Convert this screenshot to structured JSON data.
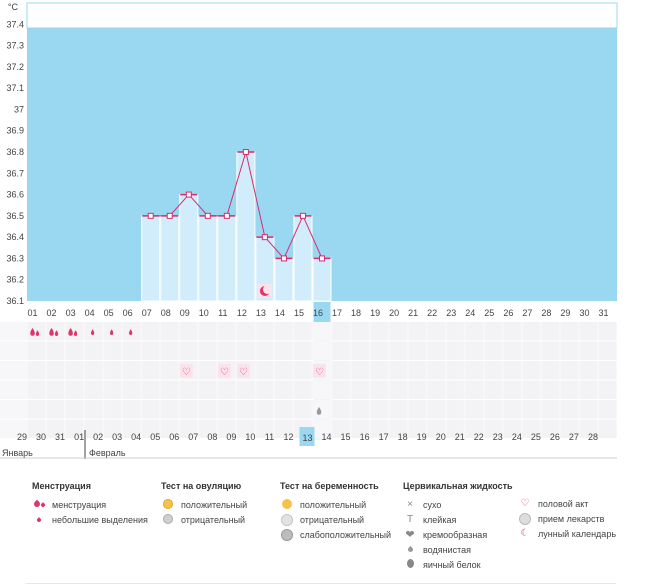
{
  "chart_data": {
    "type": "bar",
    "y_unit": "°C",
    "ylim": [
      36.1,
      37.5
    ],
    "y_ticks": [
      "37.4",
      "37.3",
      "37.2",
      "37.1",
      "37",
      "36.9",
      "36.8",
      "36.7",
      "36.6",
      "36.5",
      "36.4",
      "36.3",
      "36.2",
      "36.1"
    ],
    "x": [
      "01",
      "02",
      "03",
      "04",
      "05",
      "06",
      "07",
      "08",
      "09",
      "10",
      "11",
      "12",
      "13",
      "14",
      "15",
      "16",
      "17",
      "18",
      "19",
      "20",
      "21",
      "22",
      "23",
      "24",
      "25",
      "26",
      "27",
      "28",
      "29",
      "30",
      "31"
    ],
    "highlight_day": "16",
    "series": [
      {
        "values": [
          null,
          null,
          null,
          null,
          null,
          null,
          36.5,
          36.5,
          36.6,
          36.5,
          36.5,
          36.8,
          36.4,
          36.3,
          36.5,
          36.3,
          null,
          null,
          null,
          null,
          null,
          null,
          null,
          null,
          null,
          null,
          null,
          null,
          null,
          null,
          null
        ]
      }
    ],
    "colors": {
      "background": "#9ad8f2",
      "bar": "#d1ecfb",
      "line": "#d62d6d",
      "highlight": "#9ad8f2"
    }
  },
  "icon_rows": {
    "menstruation": [
      "01",
      "02",
      "03"
    ],
    "light_bleeding": [
      "04",
      "05",
      "06"
    ],
    "intercourse": [
      "09",
      "11",
      "12",
      "16"
    ],
    "lunar": [
      "13"
    ],
    "watery": [
      "16"
    ]
  },
  "calendar": {
    "days": [
      "29",
      "30",
      "31",
      "01",
      "02",
      "03",
      "04",
      "05",
      "06",
      "07",
      "08",
      "09",
      "10",
      "11",
      "12",
      "13",
      "14",
      "15",
      "16",
      "17",
      "18",
      "19",
      "20",
      "21",
      "22",
      "23",
      "24",
      "25",
      "26",
      "27",
      "28"
    ],
    "red_days": [
      "01",
      "02",
      "03",
      "08",
      "09",
      "15",
      "16",
      "22",
      "23"
    ],
    "today": "13",
    "month_prev": "Январь",
    "month_next": "Февраль"
  },
  "legend": {
    "menstruation": {
      "title": "Менструация",
      "items": [
        "менструация",
        "небольшие выделения"
      ]
    },
    "ovulation": {
      "title": "Тест на овуляцию",
      "items": [
        "положительный",
        "отрицательный"
      ]
    },
    "pregnancy": {
      "title": "Тест на беременность",
      "items": [
        "положительный",
        "отрицательный",
        "слабоположительный"
      ]
    },
    "cervical": {
      "title": "Цервикальная жидкость",
      "items": [
        "сухо",
        "клейкая",
        "кремообразная",
        "водянистая",
        "яичный белок"
      ]
    },
    "other": {
      "items": [
        "половой акт",
        "прием лекарств",
        "лунный календарь"
      ]
    }
  }
}
